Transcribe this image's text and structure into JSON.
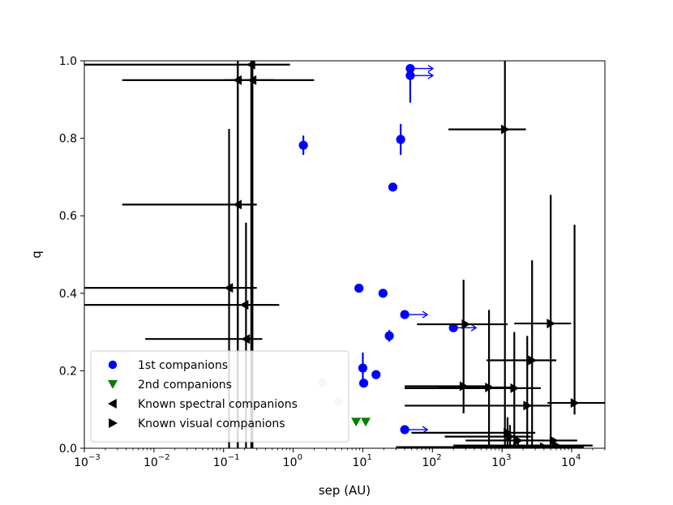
{
  "chart_data": {
    "type": "scatter",
    "xlabel": "sep (AU)",
    "ylabel": "q",
    "xscale": "log",
    "xlim": [
      0.001,
      30000
    ],
    "ylim": [
      0.0,
      1.0
    ],
    "xticks": [
      {
        "value": 0.001,
        "label": "10",
        "exp": "−3"
      },
      {
        "value": 0.01,
        "label": "10",
        "exp": "−2"
      },
      {
        "value": 0.1,
        "label": "10",
        "exp": "−1"
      },
      {
        "value": 1,
        "label": "10",
        "exp": "0"
      },
      {
        "value": 10,
        "label": "10",
        "exp": "1"
      },
      {
        "value": 100,
        "label": "10",
        "exp": "2"
      },
      {
        "value": 1000,
        "label": "10",
        "exp": "3"
      },
      {
        "value": 10000,
        "label": "10",
        "exp": "4"
      }
    ],
    "yticks": [
      {
        "value": 0.0,
        "label": "0.0"
      },
      {
        "value": 0.2,
        "label": "0.2"
      },
      {
        "value": 0.4,
        "label": "0.4"
      },
      {
        "value": 0.6,
        "label": "0.6"
      },
      {
        "value": 0.8,
        "label": "0.8"
      },
      {
        "value": 1.0,
        "label": "1.0"
      }
    ],
    "legend_position": "lower-left",
    "legend": [
      {
        "label": "1st companions",
        "marker": "circle",
        "color": "#0000ff"
      },
      {
        "label": "2nd companions",
        "marker": "triangle-down",
        "color": "#008000"
      },
      {
        "label": "Known spectral companions",
        "marker": "triangle-left",
        "color": "#000000"
      },
      {
        "label": "Known visual companions",
        "marker": "triangle-right",
        "color": "#000000"
      }
    ],
    "series": [
      {
        "name": "1st companions",
        "marker": "circle",
        "color": "#0000ff",
        "points": [
          {
            "x": 1.4,
            "y": 0.782,
            "yerr": [
              0.025,
              0.025
            ]
          },
          {
            "x": 2.6,
            "y": 0.17,
            "yerr": [
              0.015,
              0.015
            ],
            "faded": true
          },
          {
            "x": 4.5,
            "y": 0.12,
            "yerr": [
              0.0,
              0.0
            ],
            "faded": true
          },
          {
            "x": 8.8,
            "y": 0.413,
            "yerr": [
              0.0,
              0.0
            ]
          },
          {
            "x": 10,
            "y": 0.207,
            "yerr": [
              0.04,
              0.04
            ]
          },
          {
            "x": 10.3,
            "y": 0.168,
            "yerr": [
              0.0,
              0.0
            ]
          },
          {
            "x": 15.5,
            "y": 0.19,
            "yerr": [
              0.0,
              0.0
            ]
          },
          {
            "x": 19.5,
            "y": 0.4,
            "yerr": [
              0.0,
              0.0
            ]
          },
          {
            "x": 24,
            "y": 0.29,
            "yerr": [
              0.015,
              0.015
            ]
          },
          {
            "x": 27,
            "y": 0.674,
            "yerr": [
              0.0,
              0.0
            ]
          },
          {
            "x": 35,
            "y": 0.797,
            "yerr": [
              0.04,
              0.04
            ]
          },
          {
            "x": 40,
            "y": 0.345,
            "yerr": [
              0.0,
              0.0
            ],
            "lower_limit_x": true
          },
          {
            "x": 40,
            "y": 0.048,
            "yerr": [
              0.0,
              0.0
            ],
            "lower_limit_x": true
          },
          {
            "x": 48,
            "y": 0.98,
            "yerr": [
              0.0,
              0.0
            ],
            "lower_limit_x": true
          },
          {
            "x": 48,
            "y": 0.962,
            "yerr": [
              0.07,
              0.02
            ],
            "lower_limit_x": true
          },
          {
            "x": 200,
            "y": 0.311,
            "yerr": [
              0.0,
              0.0
            ],
            "lower_limit_x": true
          }
        ]
      },
      {
        "name": "2nd companions",
        "marker": "triangle-down",
        "color": "#008000",
        "points": [
          {
            "x": 8,
            "y": 0.068
          },
          {
            "x": 11,
            "y": 0.068
          }
        ]
      },
      {
        "name": "Known spectral companions",
        "marker": "triangle-left",
        "color": "#000000",
        "points": [
          {
            "x": 0.16,
            "y": 0.95,
            "xerr": [
              0.1,
              2.0
            ],
            "yerr": [
              0.95,
              0.05
            ]
          },
          {
            "x": 0.25,
            "y": 0.99,
            "xerr": [
              0.001,
              0.9
            ],
            "yerr": [
              0.99,
              0.01
            ]
          },
          {
            "x": 0.26,
            "y": 0.95,
            "xerr": [
              0.0035,
              0.52
            ],
            "yerr": [
              0.95,
              0.05
            ]
          },
          {
            "x": 0.16,
            "y": 0.629,
            "xerr": [
              0.0035,
              0.3
            ],
            "yerr": [
              0.629,
              0.371
            ]
          },
          {
            "x": 0.12,
            "y": 0.414,
            "xerr": [
              0.001,
              0.3
            ],
            "yerr": [
              0.414,
              0.41
            ]
          },
          {
            "x": 0.21,
            "y": 0.282,
            "xerr": [
              0.0075,
              0.36
            ],
            "yerr": [
              0.282,
              0.3
            ]
          },
          {
            "x": 0.2,
            "y": 0.37,
            "xerr": [
              0.001,
              0.63
            ],
            "yerr": [
              0.0,
              0.0
            ]
          }
        ]
      },
      {
        "name": "Known visual companions",
        "marker": "triangle-right",
        "color": "#000000",
        "points": [
          {
            "x": 1100,
            "y": 0.823,
            "xerr": [
              170,
              2200
            ],
            "yerr": [
              0.823,
              0.177
            ]
          },
          {
            "x": 280,
            "y": 0.16,
            "xerr": [
              40,
              700
            ],
            "yerr": [
              0.07,
              0.275
            ]
          },
          {
            "x": 300,
            "y": 0.32,
            "xerr": [
              60,
              1200
            ],
            "yerr": [
              0.0,
              0.0
            ]
          },
          {
            "x": 650,
            "y": 0.157,
            "xerr": [
              120,
              1400
            ],
            "yerr": [
              0.157,
              0.2
            ]
          },
          {
            "x": 1500,
            "y": 0.155,
            "xerr": [
              40,
              3600
            ],
            "yerr": [
              0.155,
              0.145
            ]
          },
          {
            "x": 2300,
            "y": 0.11,
            "xerr": [
              40,
              5000
            ],
            "yerr": [
              0.11,
              0.18
            ]
          },
          {
            "x": 2700,
            "y": 0.227,
            "xerr": [
              600,
              6000
            ],
            "yerr": [
              0.227,
              0.258
            ]
          },
          {
            "x": 5000,
            "y": 0.322,
            "xerr": [
              1500,
              9800
            ],
            "yerr": [
              0.322,
              0.332
            ]
          },
          {
            "x": 11000,
            "y": 0.117,
            "xerr": [
              4500,
              30000
            ],
            "yerr": [
              0.03,
              0.46
            ]
          },
          {
            "x": 1200,
            "y": 0.04,
            "xerr": [
              50,
              3000
            ],
            "yerr": [
              0.04,
              0.04
            ]
          },
          {
            "x": 1300,
            "y": 0.03,
            "xerr": [
              150,
              2600
            ],
            "yerr": [
              0.03,
              0.03
            ]
          },
          {
            "x": 1700,
            "y": 0.02,
            "xerr": [
              300,
              4000
            ],
            "yerr": [
              0.02,
              0.0
            ]
          },
          {
            "x": 5500,
            "y": 0.02,
            "xerr": [
              700,
              12000
            ],
            "yerr": [
              0.02,
              0.0
            ]
          },
          {
            "x": 6000,
            "y": 0.007,
            "xerr": [
              200,
              20000
            ],
            "yerr": [
              0.007,
              0.0
            ]
          },
          {
            "x": 4000,
            "y": 0.003,
            "xerr": [
              30,
              15000
            ],
            "yerr": [
              0.003,
              0.0
            ]
          }
        ]
      }
    ]
  }
}
